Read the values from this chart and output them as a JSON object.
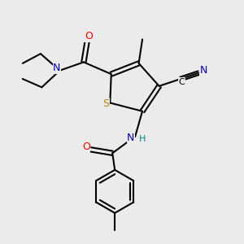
{
  "bg_color": "#ebebeb",
  "C": "#000000",
  "N_color": "#0000cc",
  "O_color": "#ff0000",
  "S_color": "#b8860b",
  "H_color": "#008b8b",
  "lw": 1.5,
  "fs": 9,
  "xlim": [
    0,
    10
  ],
  "ylim": [
    0,
    10
  ]
}
